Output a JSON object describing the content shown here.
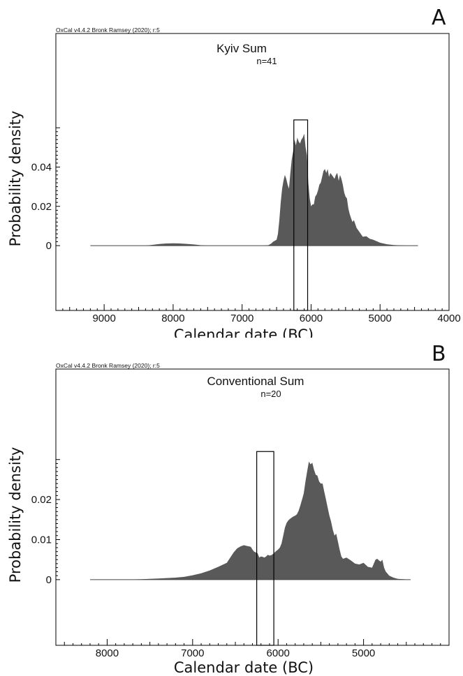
{
  "chart_data": [
    {
      "type": "area",
      "panel_letter": "A",
      "credit": "OxCal v4.4.2 Bronk Ramsey (2020); r:5",
      "title": "Kyiv Sum",
      "subtitle": "n=41",
      "xlabel": "Calendar date (BC)",
      "ylabel": "Probability density",
      "x_reversed": true,
      "xlim": [
        9700,
        4000
      ],
      "ylim": [
        -0.033,
        0.108
      ],
      "xticks": [
        9000,
        8000,
        7000,
        6000,
        5000,
        4000
      ],
      "xtick_labels": [
        "9000",
        "8000",
        "7000",
        "6000",
        "5000",
        "4000"
      ],
      "yticks": [
        0,
        0.02,
        0.04
      ],
      "ytick_labels": [
        "0",
        "0.02",
        "0.04"
      ],
      "ytick_range": [
        0,
        0.06
      ],
      "highlight": {
        "x_start": 6250,
        "x_end": 6050,
        "y_top": 0.064
      },
      "colors": {
        "fill": "#595959",
        "frame": "#000000"
      },
      "series": [
        {
          "x": [
            9200,
            8400,
            8300,
            8200,
            8100,
            8000,
            7900,
            7800,
            7700,
            7600,
            7500,
            7000,
            6700,
            6620,
            6580,
            6550,
            6500,
            6480,
            6460,
            6440,
            6420,
            6400,
            6380,
            6360,
            6340,
            6320,
            6300,
            6280,
            6260,
            6240,
            6220,
            6200,
            6180,
            6160,
            6140,
            6120,
            6100,
            6080,
            6060,
            6040,
            6020,
            6000,
            5980,
            5960,
            5940,
            5920,
            5900,
            5880,
            5860,
            5840,
            5820,
            5800,
            5780,
            5760,
            5740,
            5720,
            5700,
            5680,
            5660,
            5640,
            5620,
            5600,
            5580,
            5560,
            5540,
            5520,
            5500,
            5480,
            5460,
            5440,
            5420,
            5400,
            5380,
            5360,
            5340,
            5300,
            5250,
            5200,
            5150,
            5100,
            5000,
            4900,
            4800,
            4700,
            4600,
            4450
          ],
          "y": [
            0,
            0,
            0.0004,
            0.0008,
            0.0011,
            0.0012,
            0.0011,
            0.0009,
            0.0006,
            0.0002,
            0,
            0,
            0,
            0.0002,
            0.001,
            0.002,
            0.003,
            0.006,
            0.013,
            0.022,
            0.029,
            0.033,
            0.036,
            0.034,
            0.031,
            0.029,
            0.037,
            0.044,
            0.048,
            0.054,
            0.051,
            0.055,
            0.053,
            0.052,
            0.054,
            0.055,
            0.057,
            0.05,
            0.046,
            0.032,
            0.024,
            0.02,
            0.021,
            0.021,
            0.025,
            0.026,
            0.028,
            0.031,
            0.032,
            0.035,
            0.038,
            0.039,
            0.037,
            0.039,
            0.035,
            0.037,
            0.036,
            0.035,
            0.034,
            0.036,
            0.037,
            0.033,
            0.036,
            0.034,
            0.031,
            0.027,
            0.025,
            0.024,
            0.019,
            0.016,
            0.014,
            0.012,
            0.013,
            0.011,
            0.009,
            0.007,
            0.0045,
            0.0048,
            0.0035,
            0.003,
            0.0015,
            0.0007,
            0.0003,
            0.0001,
            0,
            0
          ]
        }
      ]
    },
    {
      "type": "area",
      "panel_letter": "B",
      "credit": "OxCal v4.4.2 Bronk Ramsey (2020); r:5",
      "title": "Conventional Sum",
      "subtitle": "n=20",
      "xlabel": "Calendar date (BC)",
      "ylabel": "Probability density",
      "x_reversed": true,
      "xlim": [
        8600,
        4000
      ],
      "ylim": [
        -0.0164,
        0.0526
      ],
      "xticks": [
        8000,
        7000,
        6000,
        5000
      ],
      "xtick_labels": [
        "8000",
        "7000",
        "6000",
        "5000"
      ],
      "yticks": [
        0,
        0.01,
        0.02
      ],
      "ytick_labels": [
        "0",
        "0.01",
        "0.02"
      ],
      "ytick_range": [
        0,
        0.03
      ],
      "highlight": {
        "x_start": 6250,
        "x_end": 6050,
        "y_top": 0.032
      },
      "colors": {
        "fill": "#595959",
        "frame": "#000000"
      },
      "series": [
        {
          "x": [
            8200,
            7800,
            7600,
            7500,
            7400,
            7300,
            7200,
            7100,
            7000,
            6900,
            6800,
            6700,
            6600,
            6560,
            6520,
            6480,
            6440,
            6400,
            6360,
            6320,
            6300,
            6280,
            6260,
            6240,
            6220,
            6200,
            6180,
            6160,
            6140,
            6120,
            6100,
            6080,
            6060,
            6040,
            6020,
            6000,
            5980,
            5960,
            5940,
            5920,
            5900,
            5880,
            5860,
            5840,
            5820,
            5800,
            5780,
            5760,
            5740,
            5720,
            5700,
            5680,
            5660,
            5640,
            5620,
            5600,
            5580,
            5560,
            5540,
            5520,
            5500,
            5480,
            5460,
            5440,
            5420,
            5400,
            5380,
            5360,
            5340,
            5320,
            5300,
            5280,
            5260,
            5240,
            5200,
            5150,
            5100,
            5050,
            5000,
            4950,
            4900,
            4880,
            4860,
            4840,
            4820,
            4800,
            4780,
            4760,
            4740,
            4720,
            4700,
            4650,
            4600,
            4450
          ],
          "y": [
            0,
            0,
            0.0001,
            0.0002,
            0.0003,
            0.0004,
            0.0005,
            0.0007,
            0.0011,
            0.0016,
            0.0023,
            0.0032,
            0.0042,
            0.0055,
            0.0068,
            0.0078,
            0.0083,
            0.0086,
            0.0084,
            0.0082,
            0.0075,
            0.007,
            0.0068,
            0.0066,
            0.0055,
            0.0058,
            0.0057,
            0.0055,
            0.0058,
            0.0062,
            0.006,
            0.0061,
            0.0064,
            0.0068,
            0.0072,
            0.0075,
            0.008,
            0.009,
            0.011,
            0.013,
            0.0142,
            0.0148,
            0.0152,
            0.0155,
            0.0158,
            0.016,
            0.0163,
            0.0172,
            0.0185,
            0.02,
            0.0215,
            0.0245,
            0.027,
            0.0295,
            0.0288,
            0.0292,
            0.0275,
            0.0262,
            0.026,
            0.0245,
            0.024,
            0.024,
            0.022,
            0.02,
            0.018,
            0.016,
            0.0145,
            0.0125,
            0.011,
            0.0115,
            0.0095,
            0.0075,
            0.0058,
            0.0052,
            0.0055,
            0.0048,
            0.004,
            0.0038,
            0.0042,
            0.0032,
            0.003,
            0.004,
            0.005,
            0.0052,
            0.0048,
            0.0045,
            0.005,
            0.003,
            0.002,
            0.0015,
            0.001,
            0.0005,
            0.0002,
            0
          ]
        }
      ]
    }
  ]
}
